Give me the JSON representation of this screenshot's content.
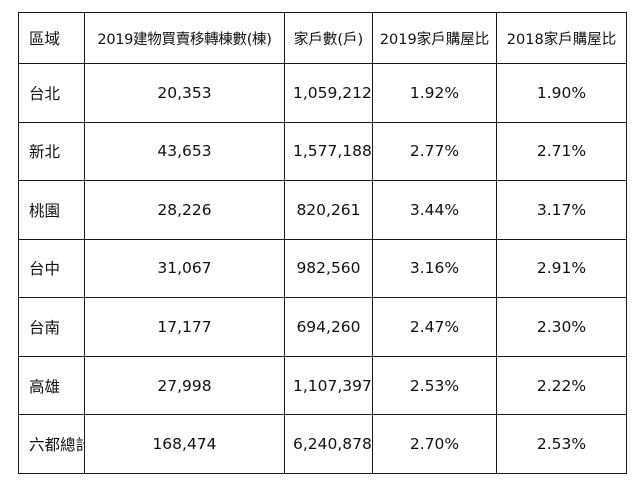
{
  "table": {
    "headers": [
      "區域",
      "2019建物買賣移轉棟數(棟)",
      "家戶數(戶)",
      "2019家戶購屋比",
      "2018家戶購屋比"
    ],
    "rows": [
      [
        "台北",
        "20,353",
        "1,059,212",
        "1.92%",
        "1.90%"
      ],
      [
        "新北",
        "43,653",
        "1,577,188",
        "2.77%",
        "2.71%"
      ],
      [
        "桃園",
        "28,226",
        "820,261",
        "3.44%",
        "3.17%"
      ],
      [
        "台中",
        "31,067",
        "982,560",
        "3.16%",
        "2.91%"
      ],
      [
        "台南",
        "17,177",
        "694,260",
        "2.47%",
        "2.30%"
      ],
      [
        "高雄",
        "27,998",
        "1,107,397",
        "2.53%",
        "2.22%"
      ],
      [
        "六都總計",
        "168,474",
        "6,240,878",
        "2.70%",
        "2.53%"
      ]
    ]
  }
}
